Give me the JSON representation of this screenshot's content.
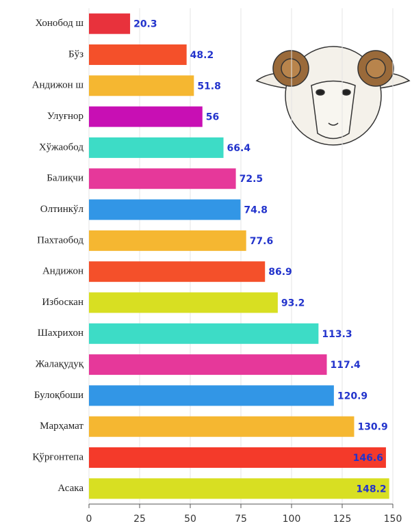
{
  "chart_data": {
    "type": "barh",
    "categories": [
      "Хонобод ш",
      "Бўз",
      "Андижон ш",
      "Улуғнор",
      "Хўжаобод",
      "Балиқчи",
      "Олтинкўл",
      "Пахтаобод",
      "Андижон",
      "Избоскан",
      "Шахрихон",
      "Жалақудуқ",
      "Булоқбоши",
      "Марҳамат",
      "Қўрғонтепа",
      "Асака"
    ],
    "values": [
      20.3,
      48.2,
      51.8,
      56,
      66.4,
      72.5,
      74.8,
      77.6,
      86.9,
      93.2,
      113.3,
      117.4,
      120.9,
      130.9,
      146.6,
      148.2
    ],
    "colors": [
      "#e8323c",
      "#f4502a",
      "#f5b731",
      "#c80fb4",
      "#3ddcc6",
      "#e6389a",
      "#3296e6",
      "#f5b731",
      "#f4502a",
      "#d8df22",
      "#3ddcc6",
      "#e6389a",
      "#3296e6",
      "#f5b731",
      "#f43a2a",
      "#d8df22"
    ],
    "xlim": [
      0,
      150
    ],
    "xticks": [
      0,
      25,
      50,
      75,
      100,
      125,
      150
    ],
    "grid": true
  }
}
